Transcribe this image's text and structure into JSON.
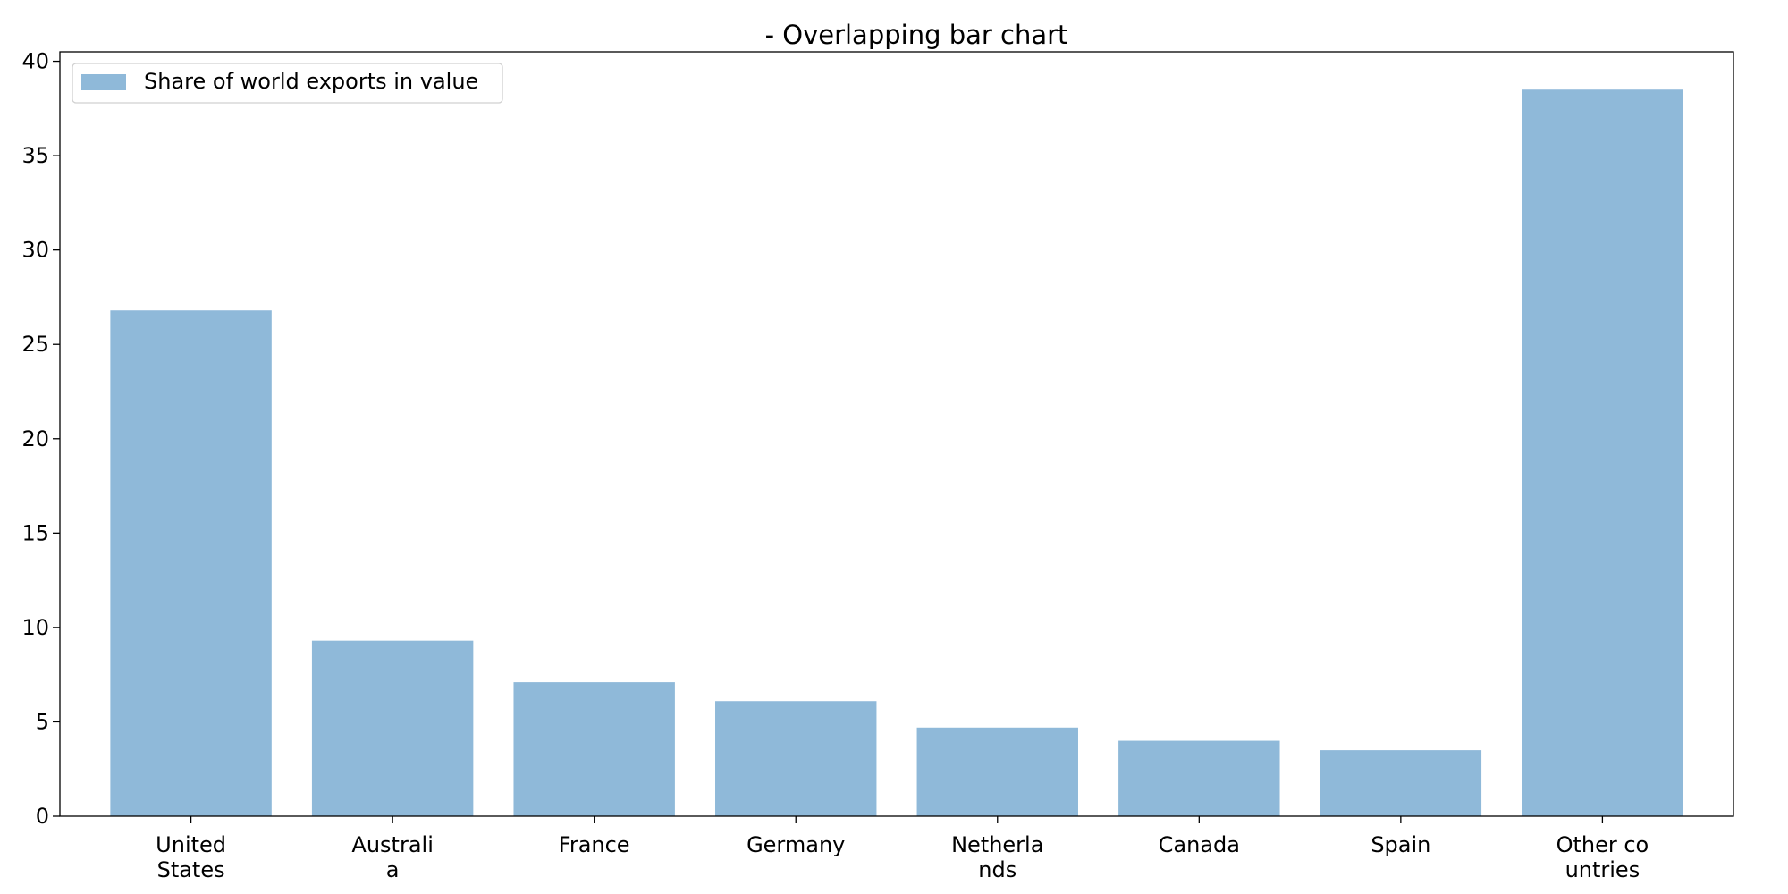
{
  "chart_data": {
    "type": "bar",
    "title": "- Overlapping bar chart",
    "xlabel": "",
    "ylabel": "",
    "categories": [
      [
        "United",
        "States"
      ],
      [
        "Australi",
        "a"
      ],
      [
        "France"
      ],
      [
        "Germany"
      ],
      [
        "Netherla",
        "nds"
      ],
      [
        "Canada"
      ],
      [
        "Spain"
      ],
      [
        "Other co",
        "untries"
      ]
    ],
    "series": [
      {
        "name": "Share of world exports in value",
        "values": [
          26.8,
          9.3,
          7.1,
          6.1,
          4.7,
          4.0,
          3.5,
          38.5
        ],
        "color": "#8fb9d9"
      }
    ],
    "ylim": [
      0,
      40.5
    ],
    "yticks": [
      0,
      5,
      10,
      15,
      20,
      25,
      30,
      35,
      40
    ],
    "grid": false,
    "legend_position": "top-left"
  }
}
